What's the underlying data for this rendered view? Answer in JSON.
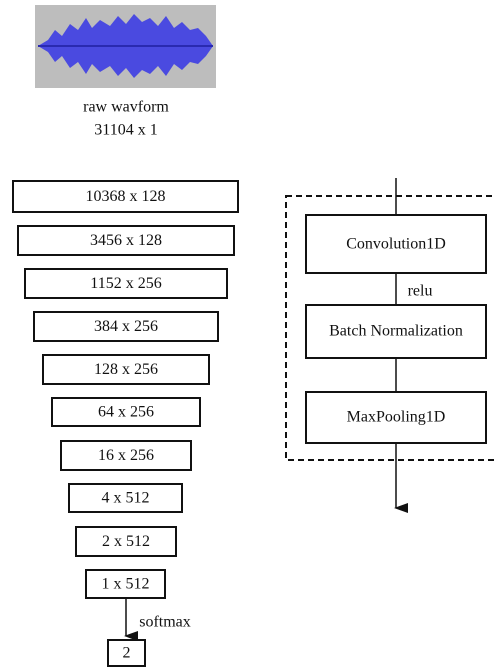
{
  "input": {
    "label": "raw wavform",
    "shape": "31104 x 1"
  },
  "layers": [
    "10368 x 128",
    "3456 x 128",
    "1152 x 256",
    "384 x 256",
    "128 x 256",
    "64 x 256",
    "16 x 256",
    "4 x 512",
    "2 x 512",
    "1 x 512"
  ],
  "output": {
    "activation": "softmax",
    "shape": "2"
  },
  "block": {
    "nodes": [
      "Convolution1D",
      "Batch Normalization",
      "MaxPooling1D"
    ],
    "activation": "relu"
  }
}
